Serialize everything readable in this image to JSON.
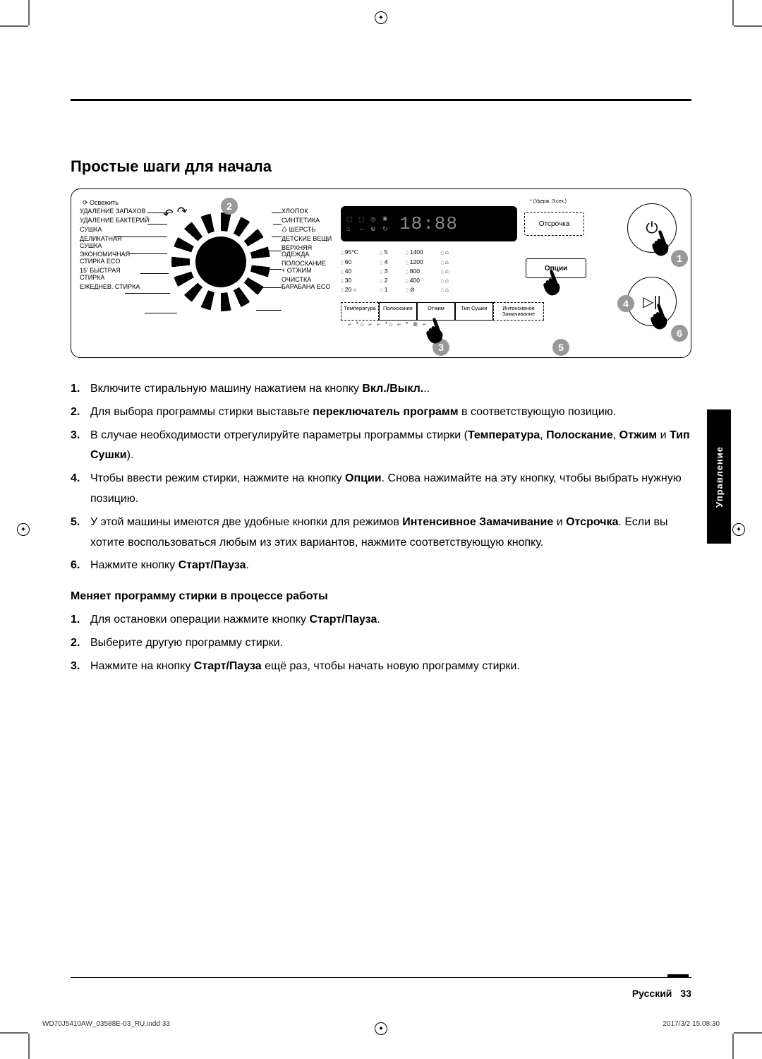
{
  "title": "Простые шаги для начала",
  "panel": {
    "refresh": "⟳ Освежить",
    "hold_note": "* (Удерж. 3 сек.)",
    "left_labels": [
      "УДАЛЕНИЕ ЗАПАХОВ",
      "УДАЛЕНИЕ БАКТЕРИЙ",
      "СУШКА",
      "ДЕЛИКАТНАЯ\nСУШКА",
      "ЭКОНОМИЧНАЯ\nСТИРКА ECO",
      "15' БЫСТРАЯ\nСТИРКА",
      "ЕЖЕДНЕВ. СТИРКА"
    ],
    "right_labels": [
      "ХЛОПОК",
      "СИНТЕТИКА",
      "♺ ШЕРСТЬ",
      "ДЕТСКИЕ ВЕЩИ",
      "ВЕРХНЯЯ\nОДЕЖДА",
      "ПОЛОСКАНИЕ\n+ ОТЖИМ",
      "ОЧИСТКА\nБАРАБАНА ECO"
    ],
    "display_digits": "18:88",
    "delay_label": "Отсрочка",
    "options_label": "Опции",
    "temps": [
      "95℃",
      "60",
      "40",
      "30",
      "20 ○"
    ],
    "rinses": [
      "5",
      "4",
      "3",
      "2",
      "1"
    ],
    "spins": [
      "1400",
      "1200",
      "800",
      "400",
      "⊘"
    ],
    "dry": [
      "⌂",
      "⌂",
      "⌂",
      "⌂",
      "⌂"
    ],
    "bottom_buttons": [
      "Температура",
      "Полоскание",
      "Отжим",
      "Тип Сушки",
      "Интенсивное\nЗамачивание"
    ],
    "under_row": "⌐ *⌂ ⌐   ⌐ *⌂ ⌐       * ⊗ ⌐"
  },
  "steps1": [
    {
      "pre": "Включите стиральную машину нажатием на кнопку ",
      "b": "Вкл./Выкл.",
      "post": ".."
    },
    {
      "pre": "Для выбора программы стирки выставьте ",
      "b": "переключатель программ",
      "post": " в соответствующую позицию."
    },
    {
      "pre": "В случае необходимости отрегулируйте параметры программы стирки (",
      "b": "Температура",
      "post": ", ",
      "b2": "Полоскание",
      "post2": ", ",
      "b3": "Отжим",
      "post3": " и ",
      "b4": "Тип Сушки",
      "post4": ")."
    },
    {
      "pre": "Чтобы ввести режим стирки, нажмите на кнопку ",
      "b": "Опции",
      "post": ". Снова нажимайте на эту кнопку, чтобы выбрать нужную позицию."
    },
    {
      "pre": "У этой машины имеются две удобные кнопки для режимов ",
      "b": "Интенсивное Замачивание",
      "post": " и ",
      "b2": "Отсрочка",
      "post2": ". Если вы хотите воспользоваться любым из этих вариантов, нажмите соответствующую кнопку."
    },
    {
      "pre": "Нажмите кнопку ",
      "b": "Старт/Пауза",
      "post": "."
    }
  ],
  "subhead": "Меняет программу стирки в процессе работы",
  "steps2": [
    {
      "pre": "Для остановки операции нажмите кнопку ",
      "b": "Старт/Пауза",
      "post": "."
    },
    {
      "pre": "Выберите другую программу стирки.",
      "b": "",
      "post": ""
    },
    {
      "pre": "Нажмите на кнопку ",
      "b": "Старт/Пауза",
      "post": " ещё раз, чтобы начать новую программу стирки."
    }
  ],
  "side_tab": "Управление",
  "footer": {
    "lang": "Русский",
    "page": "33"
  },
  "spread": {
    "file": "WD70J5410AW_03588E-03_RU.indd   33",
    "date": "2017/3/2   15:08:30"
  }
}
